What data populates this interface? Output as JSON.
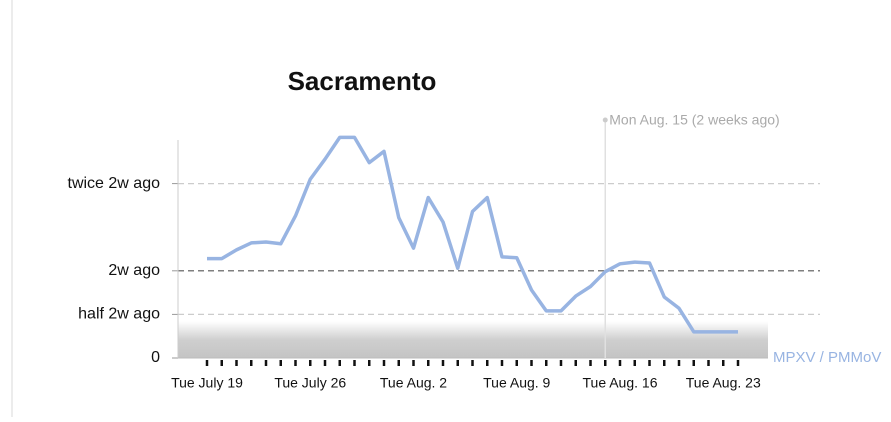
{
  "chart_data": {
    "type": "line",
    "title": "Sacramento",
    "categories": [
      "Tue July 19",
      null,
      null,
      null,
      null,
      null,
      null,
      "Tue July 26",
      null,
      null,
      null,
      null,
      null,
      null,
      "Tue Aug. 2",
      null,
      null,
      null,
      null,
      null,
      null,
      "Tue Aug. 9",
      null,
      null,
      null,
      null,
      null,
      null,
      "Tue Aug. 16",
      null,
      null,
      null,
      null,
      null,
      null,
      "Tue Aug. 23",
      null
    ],
    "series": [
      {
        "name": "MPXV / PMMoV",
        "color": "#98b4e2",
        "values": [
          1.14,
          1.14,
          1.24,
          1.32,
          1.33,
          1.31,
          1.63,
          2.05,
          2.28,
          2.53,
          2.53,
          2.24,
          2.37,
          1.61,
          1.26,
          1.84,
          1.56,
          1.03,
          1.68,
          1.84,
          1.16,
          1.15,
          0.78,
          0.54,
          0.54,
          0.71,
          0.82,
          0.99,
          1.08,
          1.1,
          1.09,
          0.7,
          0.57,
          0.3,
          0.3,
          0.3,
          0.3
        ]
      }
    ],
    "ylim": [
      0,
      2.5
    ],
    "yticks": [
      {
        "value": 0,
        "label": "0"
      },
      {
        "value": 0.5,
        "label": "half 2w ago"
      },
      {
        "value": 1,
        "label": "2w ago"
      },
      {
        "value": 2,
        "label": "twice 2w ago"
      }
    ],
    "grid": true,
    "shaded_band": [
      0,
      0.42
    ],
    "annotation": {
      "text": "Mon Aug. 15 (2 weeks ago)",
      "at": 27
    }
  }
}
